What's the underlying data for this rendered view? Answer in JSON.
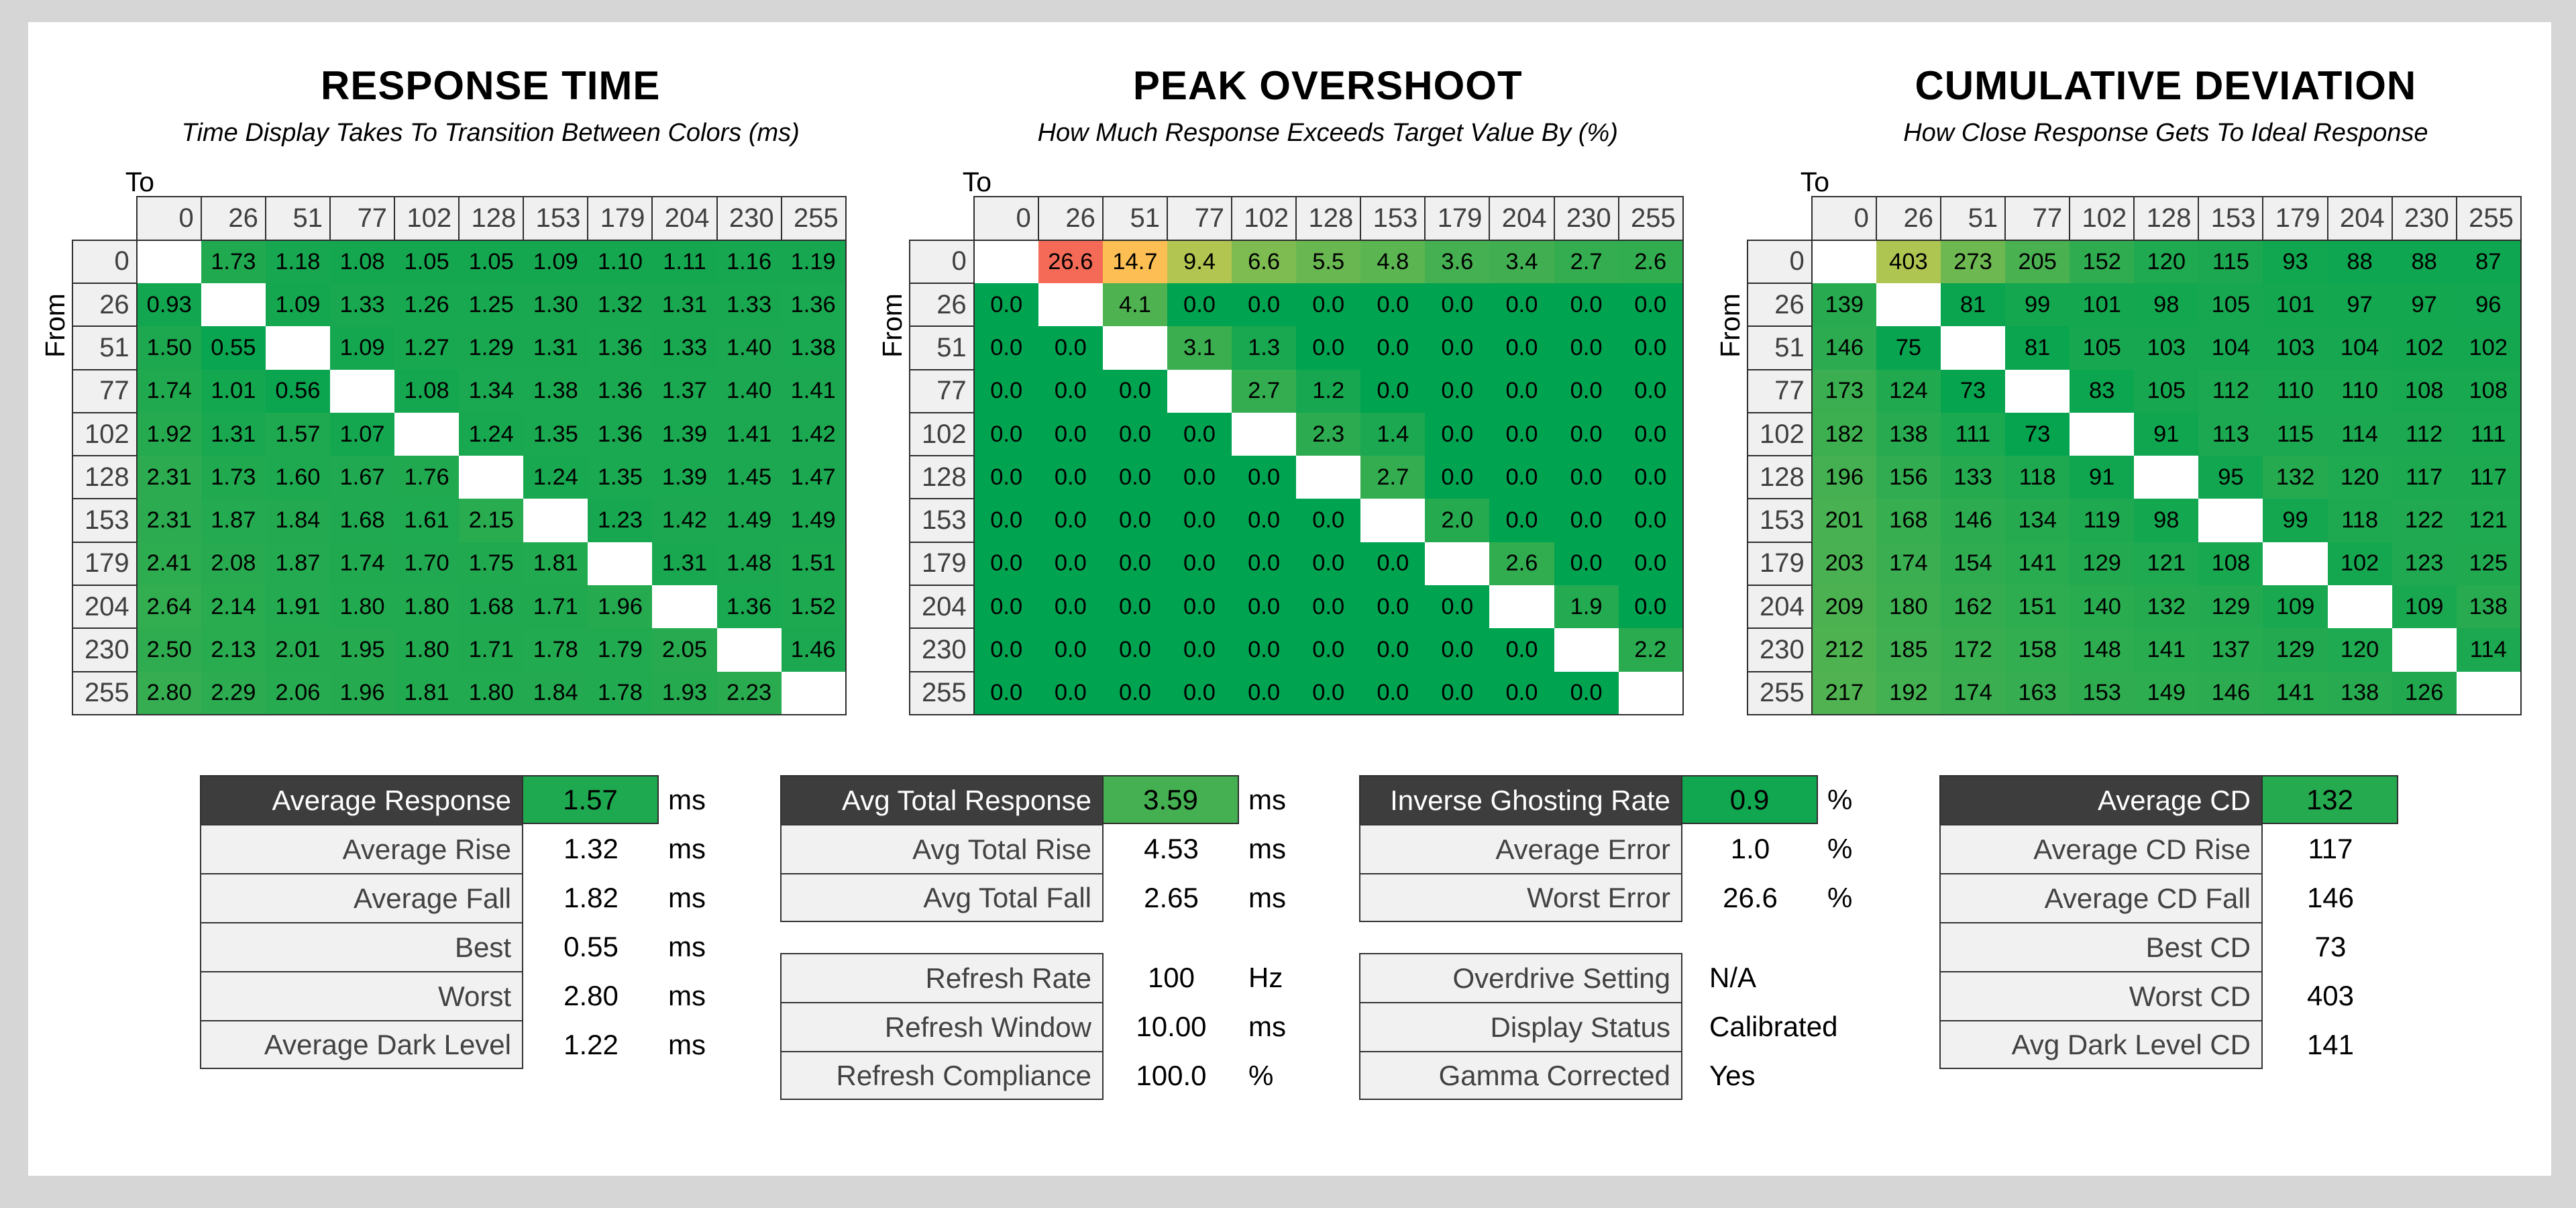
{
  "page": {
    "background": "#d6d6d6",
    "panel_background": "#ffffff"
  },
  "colors": {
    "heat_green": "#00a350",
    "heat_yellow": "#ffd452",
    "heat_red": "#f46a56",
    "border": "#2e2e2e",
    "header_cell_bg": "#f0f0f0",
    "header_text": "#3f3f3f",
    "summary_header_bg": "#3d3d3d",
    "summary_header_text": "#ffffff",
    "summary_label_bg": "#f1f1f1",
    "summary_label_text": "#424242"
  },
  "axis": {
    "to_label": "To",
    "from_label": "From",
    "levels": [
      "0",
      "26",
      "51",
      "77",
      "102",
      "128",
      "153",
      "179",
      "204",
      "230",
      "255"
    ]
  },
  "chart_data": [
    {
      "type": "heatmap",
      "title": "RESPONSE TIME",
      "subtitle": "Time Display Takes To Transition Between Colors (ms)",
      "decimals": 2,
      "scale": {
        "zero": 0,
        "yellow": 13.4,
        "red": 20
      },
      "rows": [
        [
          null,
          1.73,
          1.18,
          1.08,
          1.05,
          1.05,
          1.09,
          1.1,
          1.11,
          1.16,
          1.19
        ],
        [
          0.93,
          null,
          1.09,
          1.33,
          1.26,
          1.25,
          1.3,
          1.32,
          1.31,
          1.33,
          1.36
        ],
        [
          1.5,
          0.55,
          null,
          1.09,
          1.27,
          1.29,
          1.31,
          1.36,
          1.33,
          1.4,
          1.38
        ],
        [
          1.74,
          1.01,
          0.56,
          null,
          1.08,
          1.34,
          1.38,
          1.36,
          1.37,
          1.4,
          1.41
        ],
        [
          1.92,
          1.31,
          1.57,
          1.07,
          null,
          1.24,
          1.35,
          1.36,
          1.39,
          1.41,
          1.42
        ],
        [
          2.31,
          1.73,
          1.6,
          1.67,
          1.76,
          null,
          1.24,
          1.35,
          1.39,
          1.45,
          1.47
        ],
        [
          2.31,
          1.87,
          1.84,
          1.68,
          1.61,
          2.15,
          null,
          1.23,
          1.42,
          1.49,
          1.49
        ],
        [
          2.41,
          2.08,
          1.87,
          1.74,
          1.7,
          1.75,
          1.81,
          null,
          1.31,
          1.48,
          1.51
        ],
        [
          2.64,
          2.14,
          1.91,
          1.8,
          1.8,
          1.68,
          1.71,
          1.96,
          null,
          1.36,
          1.52
        ],
        [
          2.5,
          2.13,
          2.01,
          1.95,
          1.8,
          1.71,
          1.78,
          1.79,
          2.05,
          null,
          1.46
        ],
        [
          2.8,
          2.29,
          2.06,
          1.96,
          1.81,
          1.8,
          1.84,
          1.78,
          1.93,
          2.23,
          null
        ]
      ]
    },
    {
      "type": "heatmap",
      "title": "PEAK OVERSHOOT",
      "subtitle": "How Much Response Exceeds Target Value By (%)",
      "decimals": 1,
      "scale": {
        "zero": 0,
        "yellow": 13.4,
        "red": 20
      },
      "rows": [
        [
          null,
          26.6,
          14.7,
          9.4,
          6.6,
          5.5,
          4.8,
          3.6,
          3.4,
          2.7,
          2.6
        ],
        [
          0.0,
          null,
          4.1,
          0.0,
          0.0,
          0.0,
          0.0,
          0.0,
          0.0,
          0.0,
          0.0
        ],
        [
          0.0,
          0.0,
          null,
          3.1,
          1.3,
          0.0,
          0.0,
          0.0,
          0.0,
          0.0,
          0.0
        ],
        [
          0.0,
          0.0,
          0.0,
          null,
          2.7,
          1.2,
          0.0,
          0.0,
          0.0,
          0.0,
          0.0
        ],
        [
          0.0,
          0.0,
          0.0,
          0.0,
          null,
          2.3,
          1.4,
          0.0,
          0.0,
          0.0,
          0.0
        ],
        [
          0.0,
          0.0,
          0.0,
          0.0,
          0.0,
          null,
          2.7,
          0.0,
          0.0,
          0.0,
          0.0
        ],
        [
          0.0,
          0.0,
          0.0,
          0.0,
          0.0,
          0.0,
          null,
          2.0,
          0.0,
          0.0,
          0.0
        ],
        [
          0.0,
          0.0,
          0.0,
          0.0,
          0.0,
          0.0,
          0.0,
          null,
          2.6,
          0.0,
          0.0
        ],
        [
          0.0,
          0.0,
          0.0,
          0.0,
          0.0,
          0.0,
          0.0,
          0.0,
          null,
          1.9,
          0.0
        ],
        [
          0.0,
          0.0,
          0.0,
          0.0,
          0.0,
          0.0,
          0.0,
          0.0,
          0.0,
          null,
          2.2
        ],
        [
          0.0,
          0.0,
          0.0,
          0.0,
          0.0,
          0.0,
          0.0,
          0.0,
          0.0,
          0.0,
          null
        ]
      ]
    },
    {
      "type": "heatmap",
      "title": "CUMULATIVE DEVIATION",
      "subtitle": "How Close Response Gets To Ideal Response",
      "decimals": 0,
      "scale": {
        "zero": 60,
        "yellow": 560,
        "red": 1060
      },
      "rows": [
        [
          null,
          403,
          273,
          205,
          152,
          120,
          115,
          93,
          88,
          88,
          87
        ],
        [
          139,
          null,
          81,
          99,
          101,
          98,
          105,
          101,
          97,
          97,
          96
        ],
        [
          146,
          75,
          null,
          81,
          105,
          103,
          104,
          103,
          104,
          102,
          102
        ],
        [
          173,
          124,
          73,
          null,
          83,
          105,
          112,
          110,
          110,
          108,
          108
        ],
        [
          182,
          138,
          111,
          73,
          null,
          91,
          113,
          115,
          114,
          112,
          111
        ],
        [
          196,
          156,
          133,
          118,
          91,
          null,
          95,
          132,
          120,
          117,
          117
        ],
        [
          201,
          168,
          146,
          134,
          119,
          98,
          null,
          99,
          118,
          122,
          121
        ],
        [
          203,
          174,
          154,
          141,
          129,
          121,
          108,
          null,
          102,
          123,
          125
        ],
        [
          209,
          180,
          162,
          151,
          140,
          132,
          129,
          109,
          null,
          109,
          138
        ],
        [
          212,
          185,
          172,
          158,
          148,
          141,
          137,
          129,
          120,
          null,
          114
        ],
        [
          217,
          192,
          174,
          163,
          153,
          149,
          146,
          141,
          138,
          126,
          null
        ]
      ]
    }
  ],
  "summaries": [
    {
      "blocks": [
        {
          "dark_header": true,
          "scale_index": 0,
          "rows": [
            {
              "label": "Average Response",
              "value": "1.57",
              "numeric": 1.57,
              "unit": "ms"
            },
            {
              "label": "Average Rise",
              "value": "1.32",
              "unit": "ms"
            },
            {
              "label": "Average Fall",
              "value": "1.82",
              "unit": "ms"
            },
            {
              "label": "Best",
              "value": "0.55",
              "unit": "ms"
            },
            {
              "label": "Worst",
              "value": "2.80",
              "unit": "ms"
            },
            {
              "label": "Average Dark Level",
              "value": "1.22",
              "unit": "ms"
            }
          ]
        }
      ]
    },
    {
      "blocks": [
        {
          "dark_header": true,
          "scale_index": 0,
          "rows": [
            {
              "label": "Avg Total Response",
              "value": "3.59",
              "numeric": 3.59,
              "unit": "ms"
            },
            {
              "label": "Avg Total Rise",
              "value": "4.53",
              "unit": "ms"
            },
            {
              "label": "Avg Total Fall",
              "value": "2.65",
              "unit": "ms"
            }
          ]
        },
        {
          "dark_header": false,
          "rows": [
            {
              "label": "Refresh Rate",
              "value": "100",
              "unit": "Hz"
            },
            {
              "label": "Refresh Window",
              "value": "10.00",
              "unit": "ms"
            },
            {
              "label": "Refresh Compliance",
              "value": "100.0",
              "unit": "%"
            }
          ]
        }
      ]
    },
    {
      "blocks": [
        {
          "dark_header": true,
          "scale_index": 1,
          "rows": [
            {
              "label": "Inverse Ghosting Rate",
              "value": "0.9",
              "numeric": 0.9,
              "unit": "%"
            },
            {
              "label": "Average Error",
              "value": "1.0",
              "unit": "%"
            },
            {
              "label": "Worst Error",
              "value": "26.6",
              "unit": "%"
            }
          ]
        },
        {
          "dark_header": false,
          "rows": [
            {
              "label": "Overdrive Setting",
              "value": "N/A",
              "text_value": true
            },
            {
              "label": "Display Status",
              "value": "Calibrated",
              "text_value": true
            },
            {
              "label": "Gamma Corrected",
              "value": "Yes",
              "text_value": true
            }
          ]
        }
      ]
    },
    {
      "blocks": [
        {
          "dark_header": true,
          "scale_index": 2,
          "rows": [
            {
              "label": "Average CD",
              "value": "132",
              "numeric": 132
            },
            {
              "label": "Average CD Rise",
              "value": "117"
            },
            {
              "label": "Average CD Fall",
              "value": "146"
            },
            {
              "label": "Best CD",
              "value": "73"
            },
            {
              "label": "Worst CD",
              "value": "403"
            },
            {
              "label": "Avg Dark Level CD",
              "value": "141"
            }
          ]
        }
      ]
    }
  ]
}
